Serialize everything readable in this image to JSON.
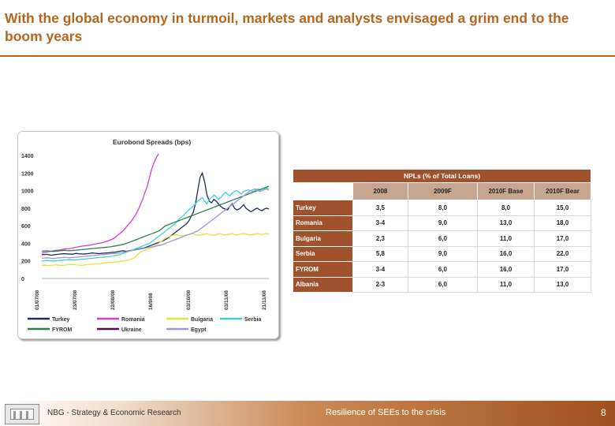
{
  "slide": {
    "title": "With the global economy in turmoil, markets and analysts envisaged a grim end to the boom years",
    "footer_left": "NBG - Strategy & Economic Research",
    "footer_center": "Resilience of SEEs to the crisis",
    "page_number": "8"
  },
  "colors": {
    "accent": "#b5651d",
    "table_header": "#a0522d",
    "table_subheader": "#c7a691"
  },
  "chart_data": [
    {
      "type": "line",
      "title": "Eurobond Spreads (bps)",
      "ylim": [
        0,
        1400
      ],
      "yticks": [
        "0",
        "200",
        "400",
        "600",
        "800",
        "1000",
        "1200",
        "1400"
      ],
      "xticks": [
        "01/07/08",
        "23/07/08",
        "22/08/08",
        "16/9/08",
        "03/10/08",
        "03/11/08",
        "21/11/08"
      ],
      "x_count": 100,
      "legend_position": "bottom",
      "series": [
        {
          "name": "Turkey",
          "color": "#1f2d5c",
          "values": [
            270,
            272,
            275,
            270,
            265,
            268,
            272,
            275,
            278,
            280,
            282,
            280,
            278,
            276,
            280,
            285,
            282,
            280,
            278,
            280,
            283,
            286,
            290,
            288,
            285,
            283,
            285,
            288,
            290,
            292,
            295,
            298,
            300,
            305,
            310,
            315,
            312,
            310,
            315,
            320,
            325,
            330,
            335,
            340,
            345,
            350,
            360,
            370,
            380,
            390,
            400,
            410,
            420,
            430,
            445,
            460,
            480,
            500,
            520,
            540,
            560,
            580,
            600,
            620,
            650,
            700,
            750,
            850,
            1000,
            1150,
            1200,
            1100,
            950,
            880,
            860,
            900,
            880,
            850,
            820,
            800,
            790,
            780,
            820,
            850,
            800,
            780,
            790,
            810,
            840,
            800,
            780,
            760,
            770,
            790,
            800,
            780,
            770,
            790,
            800,
            790
          ]
        },
        {
          "name": "Romania",
          "color": "#d23fc7",
          "values": [
            290,
            295,
            300,
            305,
            310,
            315,
            320,
            322,
            325,
            330,
            335,
            338,
            340,
            345,
            350,
            355,
            360,
            365,
            370,
            372,
            375,
            380,
            385,
            390,
            395,
            400,
            405,
            410,
            420,
            430,
            440,
            450,
            470,
            490,
            510,
            530,
            560,
            590,
            620,
            650,
            690,
            730,
            780,
            840,
            900,
            980,
            1050,
            1150,
            1250,
            1320,
            1380,
            1420,
            null,
            null,
            null,
            null,
            null,
            null,
            null,
            null,
            null,
            null,
            null,
            null,
            null,
            null,
            null,
            null,
            null,
            null,
            null,
            null,
            null,
            null,
            null,
            null,
            null,
            null,
            null,
            null,
            null,
            null,
            null,
            null,
            null,
            null,
            null,
            null,
            null,
            null,
            null,
            null,
            null,
            null,
            null,
            null,
            null,
            null,
            null,
            null
          ]
        },
        {
          "name": "Bulgaria",
          "color": "#e8e040",
          "values": [
            150,
            152,
            150,
            148,
            150,
            152,
            155,
            153,
            150,
            150,
            152,
            155,
            158,
            160,
            158,
            155,
            153,
            150,
            152,
            155,
            158,
            160,
            162,
            165,
            168,
            170,
            172,
            175,
            178,
            180,
            183,
            185,
            188,
            190,
            193,
            196,
            200,
            205,
            210,
            220,
            230,
            250,
            280,
            300,
            310,
            320,
            330,
            340,
            350,
            360,
            380,
            400,
            420,
            440,
            460,
            470,
            480,
            490,
            500,
            495,
            490,
            485,
            490,
            495,
            500,
            505,
            510,
            500,
            490,
            495,
            500,
            505,
            510,
            500,
            495,
            490,
            500,
            505,
            510,
            500,
            495,
            500,
            505,
            510,
            500,
            495,
            500,
            505,
            510,
            505,
            500,
            495,
            500,
            505,
            510,
            505,
            500,
            505,
            510,
            505
          ]
        },
        {
          "name": "Serbia",
          "color": "#3fd0d0",
          "values": [
            200,
            202,
            205,
            203,
            200,
            198,
            200,
            202,
            205,
            208,
            210,
            212,
            215,
            213,
            210,
            212,
            215,
            218,
            220,
            222,
            225,
            228,
            230,
            232,
            235,
            238,
            240,
            242,
            245,
            248,
            250,
            255,
            260,
            265,
            270,
            280,
            290,
            300,
            310,
            320,
            330,
            340,
            350,
            360,
            370,
            380,
            390,
            400,
            420,
            440,
            460,
            480,
            500,
            520,
            540,
            560,
            580,
            600,
            620,
            650,
            680,
            700,
            720,
            750,
            780,
            800,
            820,
            850,
            880,
            900,
            920,
            880,
            850,
            900,
            920,
            950,
            930,
            900,
            920,
            950,
            980,
            960,
            940,
            970,
            990,
            1000,
            980,
            960,
            990,
            1000,
            1010,
            1000,
            990,
            1000,
            1020,
            1010,
            1000,
            1020,
            1030,
            1020
          ]
        },
        {
          "name": "FYROM",
          "color": "#2e7d4f",
          "values": [
            310,
            312,
            315,
            313,
            310,
            308,
            310,
            312,
            315,
            318,
            320,
            318,
            316,
            318,
            320,
            322,
            325,
            328,
            330,
            332,
            335,
            338,
            340,
            342,
            345,
            348,
            350,
            352,
            355,
            358,
            360,
            365,
            370,
            375,
            380,
            385,
            390,
            400,
            410,
            420,
            430,
            440,
            450,
            460,
            470,
            480,
            490,
            500,
            510,
            520,
            530,
            540,
            560,
            580,
            600,
            610,
            620,
            630,
            640,
            650,
            660,
            670,
            680,
            690,
            700,
            710,
            720,
            730,
            740,
            750,
            760,
            770,
            780,
            790,
            800,
            810,
            820,
            830,
            840,
            850,
            860,
            870,
            880,
            890,
            900,
            910,
            920,
            930,
            940,
            950,
            960,
            970,
            980,
            990,
            1000,
            1010,
            1020,
            1030,
            1040,
            1050
          ]
        },
        {
          "name": "Ukraine",
          "color": "#4a1050",
          "values": [
            null,
            null,
            null,
            null,
            null,
            null,
            null,
            null,
            null,
            null,
            null,
            null,
            null,
            null,
            null,
            null,
            null,
            null,
            null,
            null,
            null,
            null,
            null,
            null,
            null,
            null,
            null,
            null,
            null,
            null,
            null,
            null,
            null,
            null,
            null,
            null,
            null,
            null,
            null,
            null,
            null,
            null,
            null,
            null,
            null,
            null,
            null,
            null,
            null,
            null,
            null,
            null,
            null,
            null,
            null,
            null,
            null,
            null,
            null,
            null,
            null,
            null,
            null,
            null,
            null,
            null,
            null,
            null,
            null,
            null,
            null,
            null,
            null,
            null,
            null,
            null,
            null,
            null,
            null,
            null,
            null,
            null,
            null,
            null,
            null,
            null,
            null,
            null,
            null,
            null,
            null,
            null,
            null,
            null,
            null,
            null,
            null,
            null,
            null,
            null
          ]
        },
        {
          "name": "Egypt",
          "color": "#9a9ad0",
          "values": [
            230,
            232,
            235,
            233,
            230,
            228,
            230,
            232,
            235,
            238,
            240,
            238,
            236,
            238,
            240,
            242,
            245,
            248,
            250,
            252,
            255,
            258,
            260,
            262,
            265,
            268,
            270,
            272,
            275,
            278,
            280,
            282,
            285,
            288,
            290,
            295,
            300,
            305,
            310,
            315,
            320,
            325,
            330,
            335,
            340,
            345,
            350,
            355,
            360,
            365,
            370,
            375,
            380,
            390,
            400,
            410,
            420,
            430,
            440,
            450,
            460,
            470,
            480,
            490,
            500,
            510,
            520,
            530,
            540,
            560,
            580,
            600,
            620,
            640,
            660,
            680,
            700,
            720,
            740,
            760,
            780,
            800,
            820,
            840,
            860,
            880,
            900,
            920,
            940,
            960,
            980,
            1000,
            1010,
            1020,
            1000,
            990,
            1000,
            1010,
            1020,
            1000
          ]
        }
      ]
    },
    {
      "type": "table",
      "title": "NPLs (% of Total Loans)",
      "columns": [
        "2008",
        "2009F",
        "2010F Base",
        "2010F Bear"
      ],
      "rows": [
        {
          "label": "Turkey",
          "values": [
            "3,5",
            "8,0",
            "8,0",
            "15,0"
          ]
        },
        {
          "label": "Romania",
          "values": [
            "3-4",
            "9,0",
            "13,0",
            "18,0"
          ]
        },
        {
          "label": "Bulgaria",
          "values": [
            "2,3",
            "6,0",
            "11,0",
            "17,0"
          ]
        },
        {
          "label": "Serbia",
          "values": [
            "5,8",
            "9,0",
            "16,0",
            "22,0"
          ]
        },
        {
          "label": "FYROM",
          "values": [
            "3-4",
            "6,0",
            "16,0",
            "17,0"
          ]
        },
        {
          "label": "Albania",
          "values": [
            "2-3",
            "6,0",
            "11,0",
            "13,0"
          ]
        }
      ]
    }
  ]
}
